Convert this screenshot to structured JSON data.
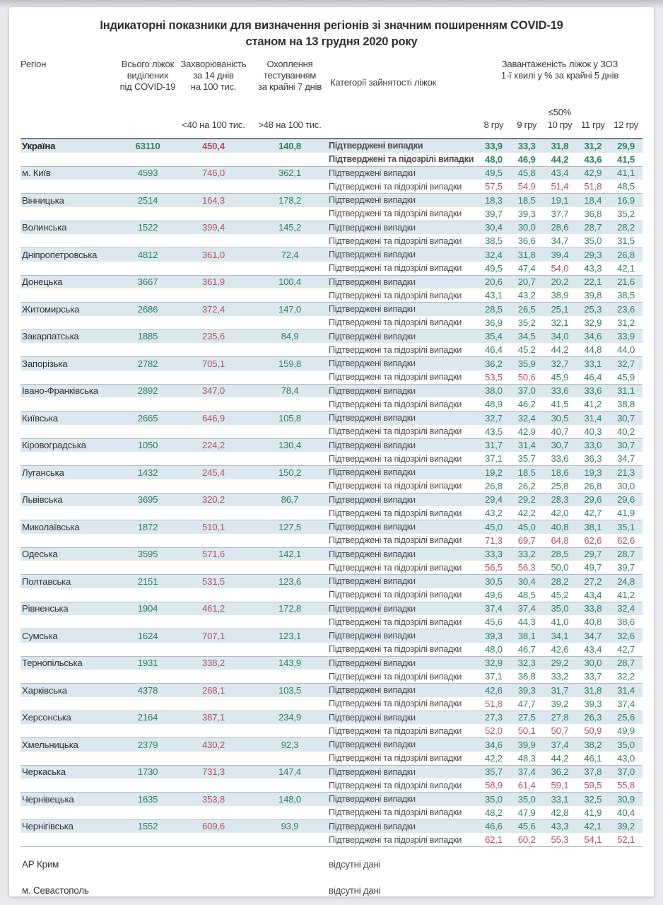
{
  "title": {
    "line1": "Індикаторні показники для визначення регіонів зі значним поширенням COVID-19",
    "line2": "станом на 13 грудня 2020 року"
  },
  "columns": {
    "region": "Регіон",
    "beds": "Всього ліжок\nвиділених\nпід COVID-19",
    "incidence": "Захворюваність\nза 14 днів\nна 100 тис.",
    "incidence_threshold": "<40 на 100 тис.",
    "testing": "Охоплення\nтестуванням\nза крайні 7 днів",
    "testing_threshold": ">48 на 100 тис.",
    "category": "Категорії зайнятості ліжок",
    "load": "Завантаженість ліжок у ЗОЗ\n1-ї хвилі у % за крайні 5 днів",
    "load_threshold": "≤50%",
    "dates": [
      "8 гру",
      "9 гру",
      "10 гру",
      "11 гру",
      "12 гру"
    ]
  },
  "category_labels": {
    "confirmed": "Підтверджені випадки",
    "confirmed_suspected": "Підтверджені та підозрілі випадки"
  },
  "no_data_label": "відсутні дані",
  "colors": {
    "green": "#2E8163",
    "red": "#B25164",
    "row_shade": "#DCE8F0"
  },
  "load_red_threshold": 50,
  "rows": [
    {
      "region": "Україна",
      "bold": true,
      "beds": "63110",
      "incidence": "450,4",
      "testing": "140,8",
      "confirmed": [
        "33,9",
        "33,3",
        "31,8",
        "31,2",
        "29,9"
      ],
      "suspected": [
        "48,0",
        "46,9",
        "44,2",
        "43,6",
        "41,5"
      ]
    },
    {
      "region": "м. Київ",
      "beds": "4593",
      "incidence": "746,0",
      "testing": "362,1",
      "confirmed": [
        "49,5",
        "45,8",
        "43,4",
        "42,9",
        "41,1"
      ],
      "suspected": [
        "57,5",
        "54,9",
        "51,4",
        "51,8",
        "48,5"
      ]
    },
    {
      "region": "Вінницька",
      "beds": "2514",
      "incidence": "164,3",
      "testing": "178,2",
      "confirmed": [
        "18,3",
        "18,5",
        "19,1",
        "18,4",
        "16,9"
      ],
      "suspected": [
        "39,7",
        "39,3",
        "37,7",
        "36,8",
        "35,2"
      ]
    },
    {
      "region": "Волинська",
      "beds": "1522",
      "incidence": "399,4",
      "testing": "145,2",
      "confirmed": [
        "30,4",
        "30,0",
        "28,6",
        "28,7",
        "28,2"
      ],
      "suspected": [
        "38,5",
        "36,6",
        "34,7",
        "35,0",
        "31,5"
      ]
    },
    {
      "region": "Дніпропетровська",
      "beds": "4812",
      "incidence": "361,0",
      "testing": "72,4",
      "confirmed": [
        "32,4",
        "31,8",
        "39,4",
        "29,3",
        "26,8"
      ],
      "suspected": [
        "49,5",
        "47,4",
        "54,0",
        "43,3",
        "42,1"
      ]
    },
    {
      "region": "Донецька",
      "beds": "3667",
      "incidence": "361,9",
      "testing": "100,4",
      "confirmed": [
        "20,6",
        "20,7",
        "20,2",
        "22,1",
        "21,6"
      ],
      "suspected": [
        "43,1",
        "43,2",
        "38,9",
        "39,8",
        "38,5"
      ]
    },
    {
      "region": "Житомирська",
      "beds": "2686",
      "incidence": "372,4",
      "testing": "147,0",
      "confirmed": [
        "28,5",
        "26,5",
        "25,1",
        "25,3",
        "23,6"
      ],
      "suspected": [
        "36,9",
        "35,2",
        "32,1",
        "32,9",
        "31,2"
      ]
    },
    {
      "region": "Закарпатська",
      "beds": "1885",
      "incidence": "235,6",
      "testing": "84,9",
      "confirmed": [
        "35,4",
        "34,5",
        "34,0",
        "34,6",
        "33,9"
      ],
      "suspected": [
        "46,4",
        "45,2",
        "44,2",
        "44,8",
        "44,0"
      ]
    },
    {
      "region": "Запорізька",
      "beds": "2782",
      "incidence": "705,1",
      "testing": "159,8",
      "confirmed": [
        "36,2",
        "35,9",
        "32,7",
        "33,1",
        "32,7"
      ],
      "suspected": [
        "53,5",
        "50,6",
        "45,9",
        "46,4",
        "45,9"
      ]
    },
    {
      "region": "Івано-Франківська",
      "beds": "2892",
      "incidence": "347,0",
      "testing": "78,4",
      "confirmed": [
        "38,0",
        "37,0",
        "33,6",
        "33,6",
        "31,1"
      ],
      "suspected": [
        "48,9",
        "46,2",
        "41,5",
        "41,2",
        "38,8"
      ]
    },
    {
      "region": "Київська",
      "beds": "2665",
      "incidence": "646,9",
      "testing": "105,8",
      "confirmed": [
        "32,7",
        "32,4",
        "30,5",
        "31,4",
        "30,7"
      ],
      "suspected": [
        "43,5",
        "42,9",
        "40,7",
        "40,3",
        "40,2"
      ]
    },
    {
      "region": "Кіровоградська",
      "beds": "1050",
      "incidence": "224,2",
      "testing": "130,4",
      "confirmed": [
        "31,7",
        "31,4",
        "30,7",
        "33,0",
        "30,7"
      ],
      "suspected": [
        "37,1",
        "35,7",
        "33,6",
        "36,3",
        "34,7"
      ]
    },
    {
      "region": "Луганська",
      "beds": "1432",
      "incidence": "245,4",
      "testing": "150,2",
      "confirmed": [
        "19,2",
        "18,5",
        "18,6",
        "19,3",
        "21,3"
      ],
      "suspected": [
        "26,8",
        "26,2",
        "25,8",
        "26,8",
        "30,0"
      ]
    },
    {
      "region": "Львівська",
      "beds": "3695",
      "incidence": "320,2",
      "testing": "86,7",
      "confirmed": [
        "29,4",
        "29,2",
        "28,3",
        "29,6",
        "29,6"
      ],
      "suspected": [
        "43,2",
        "42,2",
        "42,0",
        "42,7",
        "41,9"
      ]
    },
    {
      "region": "Миколаївська",
      "beds": "1872",
      "incidence": "510,1",
      "testing": "127,5",
      "confirmed": [
        "45,0",
        "45,0",
        "40,8",
        "38,1",
        "35,1"
      ],
      "suspected": [
        "71,3",
        "69,7",
        "64,8",
        "62,6",
        "62,6"
      ]
    },
    {
      "region": "Одеська",
      "beds": "3595",
      "incidence": "571,6",
      "testing": "142,1",
      "confirmed": [
        "33,3",
        "33,2",
        "28,5",
        "29,7",
        "28,7"
      ],
      "suspected": [
        "56,5",
        "56,3",
        "50,0",
        "49,7",
        "39,7"
      ]
    },
    {
      "region": "Полтавська",
      "beds": "2151",
      "incidence": "531,5",
      "testing": "123,6",
      "confirmed": [
        "30,5",
        "30,4",
        "28,2",
        "27,2",
        "24,8"
      ],
      "suspected": [
        "49,6",
        "48,5",
        "45,2",
        "43,4",
        "41,2"
      ]
    },
    {
      "region": "Рівненська",
      "beds": "1904",
      "incidence": "461,2",
      "testing": "172,8",
      "confirmed": [
        "37,4",
        "37,4",
        "35,0",
        "33,8",
        "32,4"
      ],
      "suspected": [
        "45,6",
        "44,3",
        "41,0",
        "40,8",
        "38,6"
      ]
    },
    {
      "region": "Сумська",
      "beds": "1624",
      "incidence": "707,1",
      "testing": "123,1",
      "confirmed": [
        "39,3",
        "38,1",
        "34,1",
        "34,7",
        "32,6"
      ],
      "suspected": [
        "48,0",
        "46,7",
        "42,6",
        "43,4",
        "42,7"
      ]
    },
    {
      "region": "Тернопільська",
      "beds": "1931",
      "incidence": "338,2",
      "testing": "143,9",
      "confirmed": [
        "32,9",
        "32,3",
        "29,2",
        "30,0",
        "28,7"
      ],
      "suspected": [
        "37,1",
        "36,8",
        "33,2",
        "33,7",
        "32,2"
      ]
    },
    {
      "region": "Харківська",
      "beds": "4378",
      "incidence": "268,1",
      "testing": "103,5",
      "confirmed": [
        "42,6",
        "39,3",
        "31,7",
        "31,8",
        "31,4"
      ],
      "suspected": [
        "51,8",
        "47,7",
        "39,2",
        "39,3",
        "37,4"
      ]
    },
    {
      "region": "Херсонська",
      "beds": "2164",
      "incidence": "387,1",
      "testing": "234,9",
      "confirmed": [
        "27,3",
        "27,5",
        "27,8",
        "26,3",
        "25,6"
      ],
      "suspected": [
        "52,0",
        "50,1",
        "50,7",
        "50,9",
        "49,9"
      ]
    },
    {
      "region": "Хмельницька",
      "beds": "2379",
      "incidence": "430,2",
      "testing": "92,3",
      "confirmed": [
        "34,6",
        "39,9",
        "37,4",
        "38,2",
        "35,0"
      ],
      "suspected": [
        "42,2",
        "48,3",
        "44,2",
        "46,1",
        "43,0"
      ]
    },
    {
      "region": "Черкаська",
      "beds": "1730",
      "incidence": "731,3",
      "testing": "147,4",
      "confirmed": [
        "35,7",
        "37,4",
        "36,2",
        "37,8",
        "37,0"
      ],
      "suspected": [
        "58,9",
        "61,4",
        "59,1",
        "59,5",
        "55,8"
      ]
    },
    {
      "region": "Чернівецька",
      "beds": "1635",
      "incidence": "353,8",
      "testing": "148,0",
      "confirmed": [
        "35,0",
        "35,0",
        "33,1",
        "32,5",
        "30,9"
      ],
      "suspected": [
        "48,2",
        "47,9",
        "42,8",
        "41,9",
        "40,4"
      ]
    },
    {
      "region": "Чернігівська",
      "beds": "1552",
      "incidence": "609,6",
      "testing": "93,9",
      "confirmed": [
        "46,6",
        "45,6",
        "43,3",
        "42,1",
        "39,2"
      ],
      "suspected": [
        "62,1",
        "60,2",
        "55,3",
        "54,1",
        "52,1"
      ]
    }
  ],
  "no_data_rows": [
    {
      "region": "АР Крим"
    },
    {
      "region": "м. Севастополь"
    }
  ]
}
